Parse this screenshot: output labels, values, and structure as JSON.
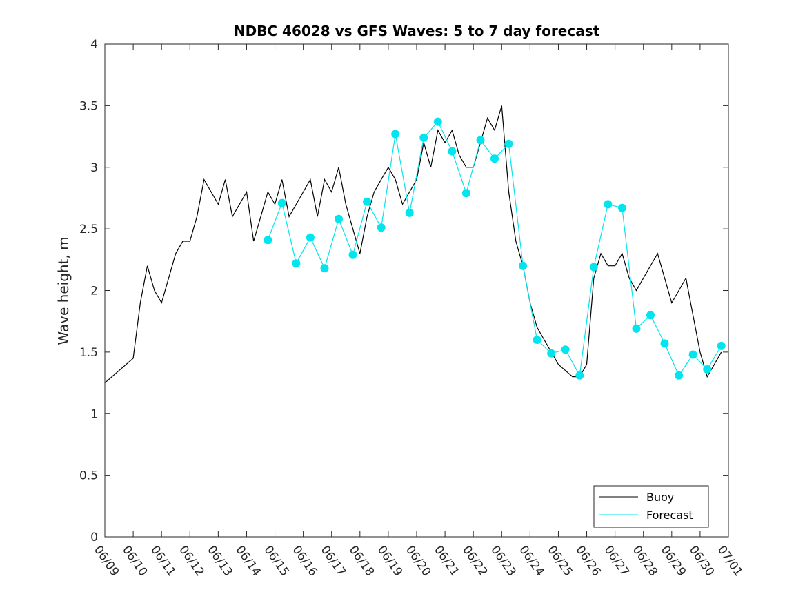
{
  "chart_data": {
    "type": "line",
    "title": "NDBC 46028 vs GFS Waves: 5 to 7 day forecast",
    "xlabel": "",
    "ylabel": "Wave height, m",
    "xlim": [
      "06/09",
      "07/01"
    ],
    "ylim": [
      0,
      4
    ],
    "x_ticks": [
      "06/09",
      "06/10",
      "06/11",
      "06/12",
      "06/13",
      "06/14",
      "06/15",
      "06/16",
      "06/17",
      "06/18",
      "06/19",
      "06/20",
      "06/21",
      "06/22",
      "06/23",
      "06/24",
      "06/25",
      "06/26",
      "06/27",
      "06/28",
      "06/29",
      "06/30",
      "07/01"
    ],
    "y_ticks": [
      0,
      0.5,
      1,
      1.5,
      2,
      2.5,
      3,
      3.5,
      4
    ],
    "y_tick_labels": [
      "0",
      "0.5",
      "1",
      "1.5",
      "2",
      "2.5",
      "3",
      "3.5",
      "4"
    ],
    "grid": false,
    "legend": {
      "placement": "bottom-right",
      "entries": [
        "Buoy",
        "Forecast"
      ]
    },
    "colors": {
      "buoy": "#000000",
      "forecast": "#00e5ee"
    },
    "series": [
      {
        "name": "Buoy",
        "x": [
          "06/09 00:00",
          "06/09 06:00",
          "06/09 12:00",
          "06/09 18:00",
          "06/10 00:00",
          "06/10 06:00",
          "06/10 12:00",
          "06/10 18:00",
          "06/11 00:00",
          "06/11 06:00",
          "06/11 12:00",
          "06/11 18:00",
          "06/12 00:00",
          "06/12 06:00",
          "06/12 12:00",
          "06/12 18:00",
          "06/13 00:00",
          "06/13 06:00",
          "06/13 12:00",
          "06/13 18:00",
          "06/14 00:00",
          "06/14 06:00",
          "06/14 12:00",
          "06/14 18:00",
          "06/15 00:00",
          "06/15 06:00",
          "06/15 12:00",
          "06/15 18:00",
          "06/16 00:00",
          "06/16 06:00",
          "06/16 12:00",
          "06/16 18:00",
          "06/17 00:00",
          "06/17 06:00",
          "06/17 12:00",
          "06/17 18:00",
          "06/18 00:00",
          "06/18 06:00",
          "06/18 12:00",
          "06/18 18:00",
          "06/19 00:00",
          "06/19 06:00",
          "06/19 12:00",
          "06/19 18:00",
          "06/20 00:00",
          "06/20 06:00",
          "06/20 12:00",
          "06/20 18:00",
          "06/21 00:00",
          "06/21 06:00",
          "06/21 12:00",
          "06/21 18:00",
          "06/22 00:00",
          "06/22 06:00",
          "06/22 12:00",
          "06/22 18:00",
          "06/23 00:00",
          "06/23 06:00",
          "06/23 12:00",
          "06/23 18:00",
          "06/24 00:00",
          "06/24 06:00",
          "06/24 12:00",
          "06/24 18:00",
          "06/25 00:00",
          "06/25 06:00",
          "06/25 12:00",
          "06/25 18:00",
          "06/26 00:00",
          "06/26 06:00",
          "06/26 12:00",
          "06/26 18:00",
          "06/27 00:00",
          "06/27 06:00",
          "06/27 12:00",
          "06/27 18:00",
          "06/28 00:00",
          "06/28 06:00",
          "06/28 12:00",
          "06/28 18:00",
          "06/29 00:00",
          "06/29 06:00",
          "06/29 12:00",
          "06/29 18:00",
          "06/30 00:00",
          "06/30 06:00",
          "06/30 12:00",
          "06/30 18:00"
        ],
        "y": [
          1.25,
          1.3,
          1.35,
          1.4,
          1.45,
          1.9,
          2.2,
          2.0,
          1.9,
          2.1,
          2.3,
          2.4,
          2.4,
          2.6,
          2.9,
          2.8,
          2.7,
          2.9,
          2.6,
          2.7,
          2.8,
          2.4,
          2.6,
          2.8,
          2.7,
          2.9,
          2.6,
          2.7,
          2.8,
          2.9,
          2.6,
          2.9,
          2.8,
          3.0,
          2.7,
          2.5,
          2.3,
          2.6,
          2.8,
          2.9,
          3.0,
          2.9,
          2.7,
          2.8,
          2.9,
          3.2,
          3.0,
          3.3,
          3.2,
          3.3,
          3.1,
          3.0,
          3.0,
          3.2,
          3.4,
          3.3,
          3.5,
          2.8,
          2.4,
          2.2,
          1.9,
          1.7,
          1.6,
          1.5,
          1.4,
          1.35,
          1.3,
          1.3,
          1.4,
          2.1,
          2.3,
          2.2,
          2.2,
          2.3,
          2.1,
          2.0,
          2.1,
          2.2,
          2.3,
          2.1,
          1.9,
          2.0,
          2.1,
          1.8,
          1.5,
          1.3,
          1.4,
          1.5
        ]
      },
      {
        "name": "Forecast",
        "x": [
          "06/14 18:00",
          "06/15 06:00",
          "06/15 18:00",
          "06/16 06:00",
          "06/16 18:00",
          "06/17 06:00",
          "06/17 18:00",
          "06/18 06:00",
          "06/18 18:00",
          "06/19 06:00",
          "06/19 18:00",
          "06/20 06:00",
          "06/20 18:00",
          "06/21 06:00",
          "06/21 18:00",
          "06/22 06:00",
          "06/22 18:00",
          "06/23 06:00",
          "06/23 18:00",
          "06/24 06:00",
          "06/24 18:00",
          "06/25 06:00",
          "06/25 18:00",
          "06/26 06:00",
          "06/26 18:00",
          "06/27 06:00",
          "06/27 18:00",
          "06/28 06:00",
          "06/28 18:00",
          "06/29 06:00",
          "06/29 18:00",
          "06/30 06:00",
          "06/30 18:00"
        ],
        "y": [
          2.41,
          2.71,
          2.22,
          2.43,
          2.18,
          2.58,
          2.29,
          2.72,
          2.51,
          3.27,
          2.63,
          3.24,
          3.37,
          3.13,
          2.79,
          3.22,
          3.07,
          3.19,
          2.2,
          1.6,
          1.49,
          1.52,
          1.31,
          2.19,
          2.7,
          2.67,
          1.69,
          1.8,
          1.57,
          1.31,
          1.48,
          1.36,
          1.55
        ]
      }
    ]
  }
}
